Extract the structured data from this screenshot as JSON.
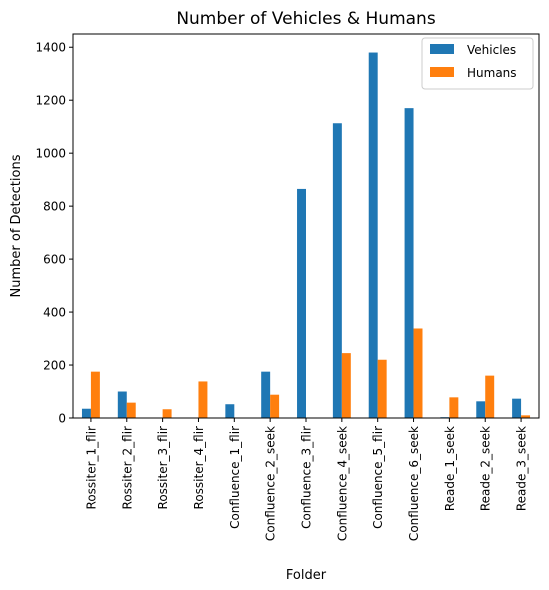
{
  "chart_data": {
    "type": "bar",
    "title": "Number of Vehicles & Humans",
    "xlabel": "Folder",
    "ylabel": "Number of Detections",
    "categories": [
      "Rossiter_1_flir",
      "Rossiter_2_flir",
      "Rossiter_3_flir",
      "Rossiter_4_flir",
      "Confluence_1_flir",
      "Confluence_2_seek",
      "Confluence_3_flir",
      "Confluence_4_seek",
      "Confluence_5_flir",
      "Confluence_6_seek",
      "Reade_1_seek",
      "Reade_2_seek",
      "Reade_3_seek"
    ],
    "series": [
      {
        "name": "Vehicles",
        "color": "#1f77b4",
        "values": [
          35,
          100,
          0,
          0,
          52,
          175,
          865,
          1113,
          1380,
          1170,
          3,
          63,
          73
        ]
      },
      {
        "name": "Humans",
        "color": "#ff7f0e",
        "values": [
          175,
          58,
          33,
          138,
          0,
          88,
          0,
          245,
          220,
          338,
          78,
          160,
          10
        ]
      }
    ],
    "ylim": [
      0,
      1450
    ],
    "yticks": [
      0,
      200,
      400,
      600,
      800,
      1000,
      1200,
      1400
    ],
    "legend_position": "top-right",
    "grid": false
  }
}
